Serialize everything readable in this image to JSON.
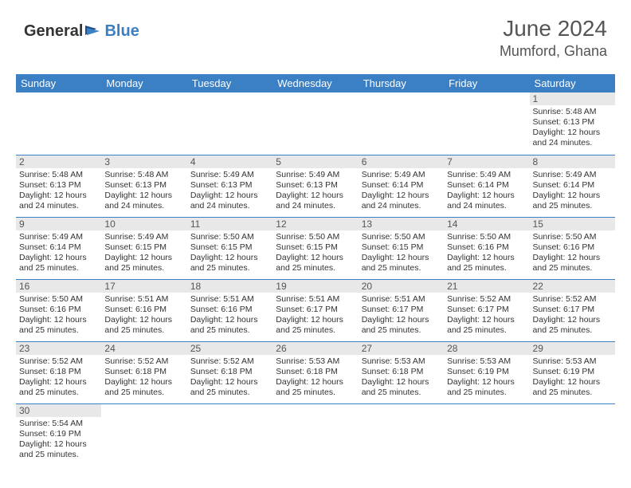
{
  "logo": {
    "general": "General",
    "blue": "Blue"
  },
  "title": "June 2024",
  "location": "Mumford, Ghana",
  "colors": {
    "header_bg": "#3b7fc4",
    "header_text": "#ffffff",
    "daynum_bg": "#e8e8e8",
    "body_text": "#333333",
    "title_text": "#555555",
    "cell_border": "#3b7fc4"
  },
  "day_headers": [
    "Sunday",
    "Monday",
    "Tuesday",
    "Wednesday",
    "Thursday",
    "Friday",
    "Saturday"
  ],
  "labels": {
    "sunrise": "Sunrise: ",
    "sunset": "Sunset: ",
    "daylight": "Daylight: "
  },
  "weeks": [
    [
      null,
      null,
      null,
      null,
      null,
      null,
      {
        "n": "1",
        "sr": "5:48 AM",
        "ss": "6:13 PM",
        "dl": "12 hours and 24 minutes."
      }
    ],
    [
      {
        "n": "2",
        "sr": "5:48 AM",
        "ss": "6:13 PM",
        "dl": "12 hours and 24 minutes."
      },
      {
        "n": "3",
        "sr": "5:48 AM",
        "ss": "6:13 PM",
        "dl": "12 hours and 24 minutes."
      },
      {
        "n": "4",
        "sr": "5:49 AM",
        "ss": "6:13 PM",
        "dl": "12 hours and 24 minutes."
      },
      {
        "n": "5",
        "sr": "5:49 AM",
        "ss": "6:13 PM",
        "dl": "12 hours and 24 minutes."
      },
      {
        "n": "6",
        "sr": "5:49 AM",
        "ss": "6:14 PM",
        "dl": "12 hours and 24 minutes."
      },
      {
        "n": "7",
        "sr": "5:49 AM",
        "ss": "6:14 PM",
        "dl": "12 hours and 24 minutes."
      },
      {
        "n": "8",
        "sr": "5:49 AM",
        "ss": "6:14 PM",
        "dl": "12 hours and 25 minutes."
      }
    ],
    [
      {
        "n": "9",
        "sr": "5:49 AM",
        "ss": "6:14 PM",
        "dl": "12 hours and 25 minutes."
      },
      {
        "n": "10",
        "sr": "5:49 AM",
        "ss": "6:15 PM",
        "dl": "12 hours and 25 minutes."
      },
      {
        "n": "11",
        "sr": "5:50 AM",
        "ss": "6:15 PM",
        "dl": "12 hours and 25 minutes."
      },
      {
        "n": "12",
        "sr": "5:50 AM",
        "ss": "6:15 PM",
        "dl": "12 hours and 25 minutes."
      },
      {
        "n": "13",
        "sr": "5:50 AM",
        "ss": "6:15 PM",
        "dl": "12 hours and 25 minutes."
      },
      {
        "n": "14",
        "sr": "5:50 AM",
        "ss": "6:16 PM",
        "dl": "12 hours and 25 minutes."
      },
      {
        "n": "15",
        "sr": "5:50 AM",
        "ss": "6:16 PM",
        "dl": "12 hours and 25 minutes."
      }
    ],
    [
      {
        "n": "16",
        "sr": "5:50 AM",
        "ss": "6:16 PM",
        "dl": "12 hours and 25 minutes."
      },
      {
        "n": "17",
        "sr": "5:51 AM",
        "ss": "6:16 PM",
        "dl": "12 hours and 25 minutes."
      },
      {
        "n": "18",
        "sr": "5:51 AM",
        "ss": "6:16 PM",
        "dl": "12 hours and 25 minutes."
      },
      {
        "n": "19",
        "sr": "5:51 AM",
        "ss": "6:17 PM",
        "dl": "12 hours and 25 minutes."
      },
      {
        "n": "20",
        "sr": "5:51 AM",
        "ss": "6:17 PM",
        "dl": "12 hours and 25 minutes."
      },
      {
        "n": "21",
        "sr": "5:52 AM",
        "ss": "6:17 PM",
        "dl": "12 hours and 25 minutes."
      },
      {
        "n": "22",
        "sr": "5:52 AM",
        "ss": "6:17 PM",
        "dl": "12 hours and 25 minutes."
      }
    ],
    [
      {
        "n": "23",
        "sr": "5:52 AM",
        "ss": "6:18 PM",
        "dl": "12 hours and 25 minutes."
      },
      {
        "n": "24",
        "sr": "5:52 AM",
        "ss": "6:18 PM",
        "dl": "12 hours and 25 minutes."
      },
      {
        "n": "25",
        "sr": "5:52 AM",
        "ss": "6:18 PM",
        "dl": "12 hours and 25 minutes."
      },
      {
        "n": "26",
        "sr": "5:53 AM",
        "ss": "6:18 PM",
        "dl": "12 hours and 25 minutes."
      },
      {
        "n": "27",
        "sr": "5:53 AM",
        "ss": "6:18 PM",
        "dl": "12 hours and 25 minutes."
      },
      {
        "n": "28",
        "sr": "5:53 AM",
        "ss": "6:19 PM",
        "dl": "12 hours and 25 minutes."
      },
      {
        "n": "29",
        "sr": "5:53 AM",
        "ss": "6:19 PM",
        "dl": "12 hours and 25 minutes."
      }
    ],
    [
      {
        "n": "30",
        "sr": "5:54 AM",
        "ss": "6:19 PM",
        "dl": "12 hours and 25 minutes."
      },
      null,
      null,
      null,
      null,
      null,
      null
    ]
  ]
}
